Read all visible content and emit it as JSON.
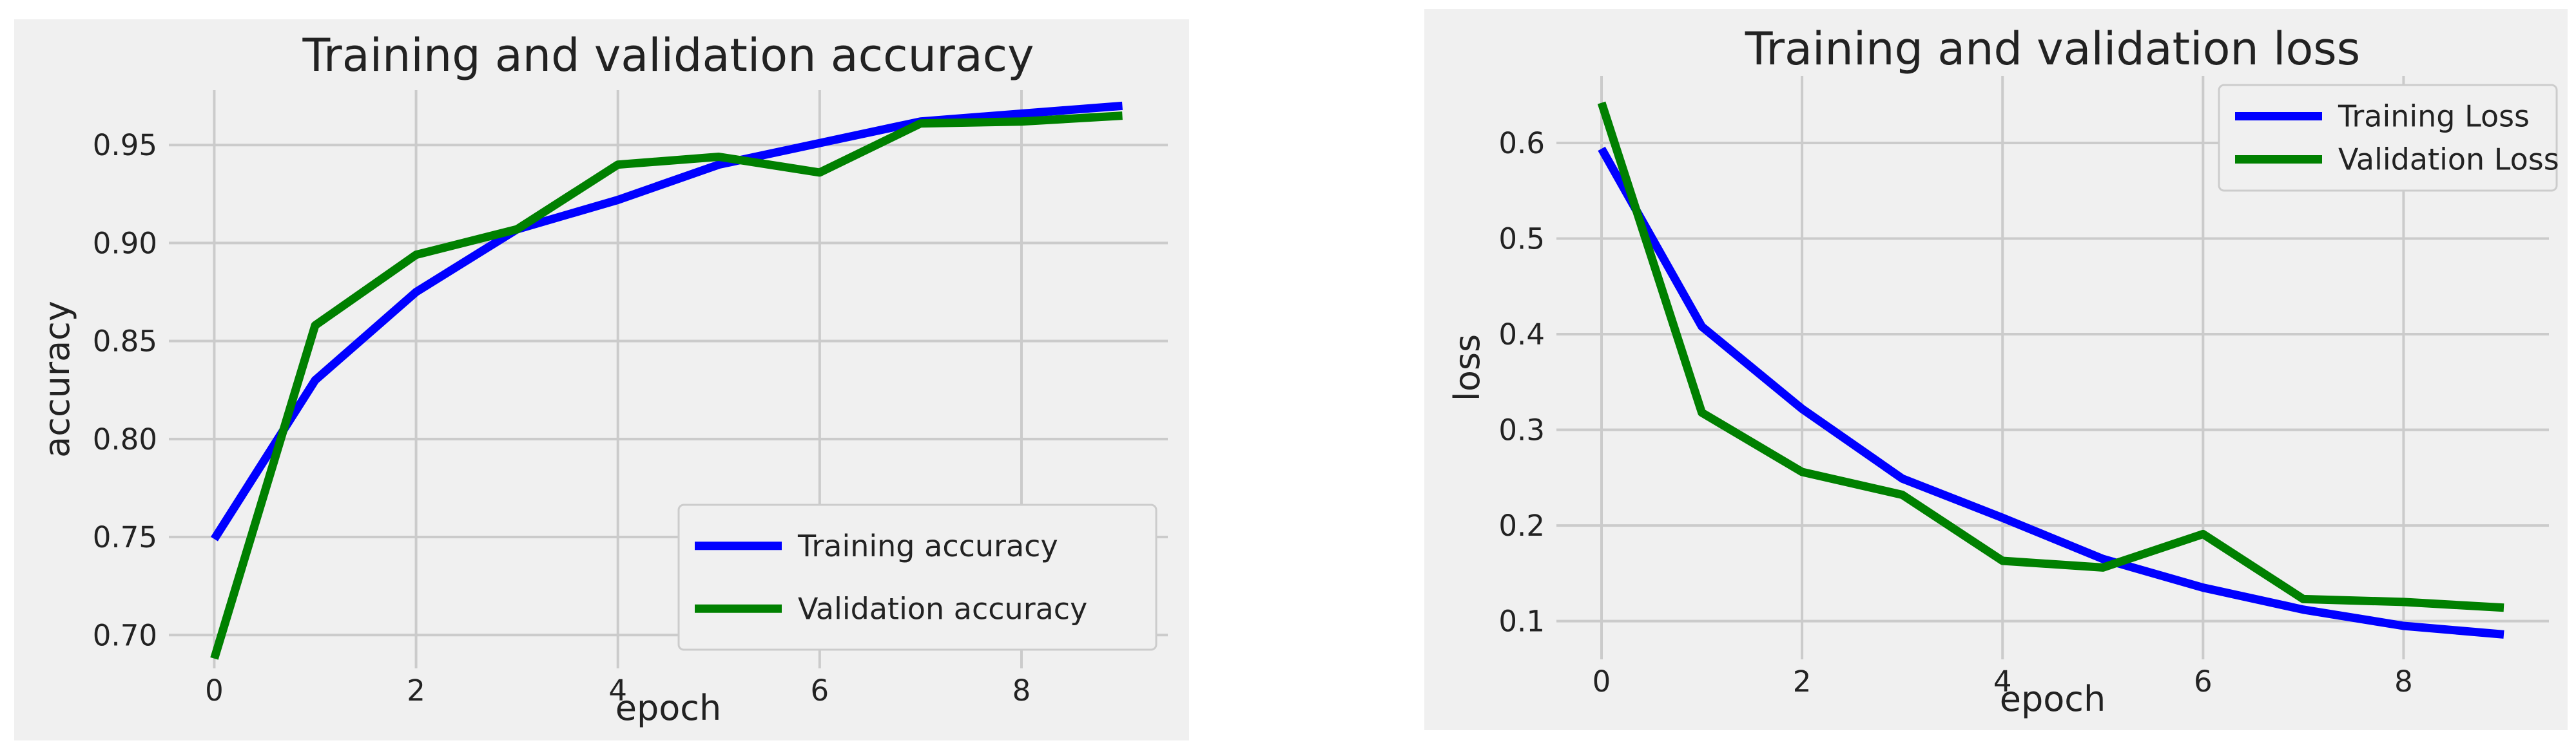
{
  "chart_data": [
    {
      "type": "line",
      "title": "Training and validation accuracy",
      "xlabel": "epoch",
      "ylabel": "accuracy",
      "x": [
        0,
        1,
        2,
        3,
        4,
        5,
        6,
        7,
        8,
        9
      ],
      "xlim": [
        -0.45,
        9.45
      ],
      "ylim": [
        0.683,
        0.978
      ],
      "xticks": [
        0,
        2,
        4,
        6,
        8
      ],
      "xtick_labels": [
        "0",
        "2",
        "4",
        "6",
        "8"
      ],
      "yticks": [
        0.7,
        0.75,
        0.8,
        0.85,
        0.9,
        0.95
      ],
      "ytick_labels": [
        "0.70",
        "0.75",
        "0.80",
        "0.85",
        "0.90",
        "0.95"
      ],
      "grid": true,
      "legend_position": "lower right",
      "series": [
        {
          "name": "Training accuracy",
          "color": "#0000ff",
          "values": [
            0.749,
            0.83,
            0.875,
            0.907,
            0.922,
            0.94,
            0.951,
            0.962,
            0.966,
            0.97
          ]
        },
        {
          "name": "Validation accuracy",
          "color": "#008000",
          "values": [
            0.688,
            0.858,
            0.894,
            0.907,
            0.94,
            0.944,
            0.936,
            0.961,
            0.962,
            0.965
          ]
        }
      ]
    },
    {
      "type": "line",
      "title": "Training and validation loss",
      "xlabel": "epoch",
      "ylabel": "loss",
      "x": [
        0,
        1,
        2,
        3,
        4,
        5,
        6,
        7,
        8,
        9
      ],
      "xlim": [
        -0.45,
        9.45
      ],
      "ylim": [
        0.06,
        0.67
      ],
      "xticks": [
        0,
        2,
        4,
        6,
        8
      ],
      "xtick_labels": [
        "0",
        "2",
        "4",
        "6",
        "8"
      ],
      "yticks": [
        0.1,
        0.2,
        0.3,
        0.4,
        0.5,
        0.6
      ],
      "ytick_labels": [
        "0.1",
        "0.2",
        "0.3",
        "0.4",
        "0.5",
        "0.6"
      ],
      "grid": true,
      "legend_position": "upper right",
      "series": [
        {
          "name": "Training Loss",
          "color": "#0000ff",
          "values": [
            0.594,
            0.408,
            0.322,
            0.249,
            0.208,
            0.165,
            0.135,
            0.112,
            0.095,
            0.086
          ]
        },
        {
          "name": "Validation Loss",
          "color": "#008000",
          "values": [
            0.642,
            0.318,
            0.256,
            0.232,
            0.163,
            0.156,
            0.191,
            0.123,
            0.12,
            0.114
          ]
        }
      ]
    }
  ]
}
